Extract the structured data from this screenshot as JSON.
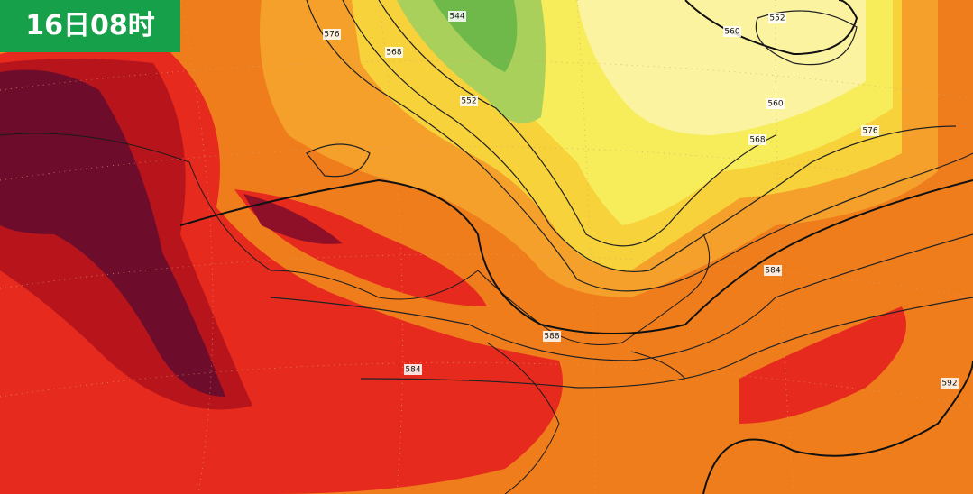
{
  "header": {
    "label": "16日08时"
  },
  "contour_labels": [
    "576",
    "568",
    "544",
    "552",
    "560",
    "552",
    "560",
    "568",
    "576",
    "584",
    "588",
    "584",
    "592"
  ]
}
